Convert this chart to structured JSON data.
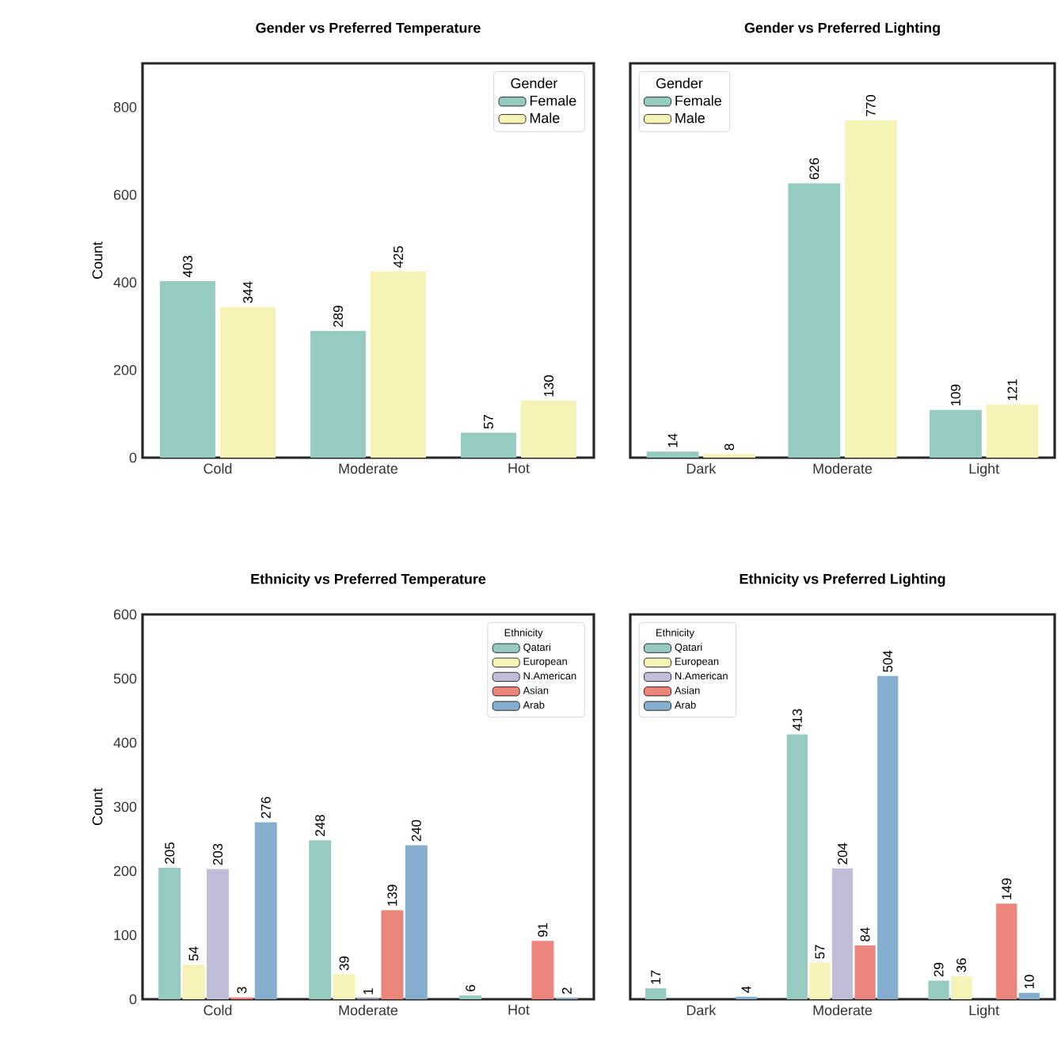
{
  "chart_data": [
    {
      "type": "bar",
      "title": "Gender vs Preferred Temperature",
      "ylabel": "Count",
      "categories": [
        "Cold",
        "Moderate",
        "Hot"
      ],
      "legend_title": "Gender",
      "legend": "top right",
      "data_labels": true,
      "ylim": [
        0,
        900
      ],
      "yticks": [
        0,
        200,
        400,
        600,
        800
      ],
      "series": [
        {
          "name": "Female",
          "color": "#96cbc1",
          "values": [
            403,
            289,
            57
          ]
        },
        {
          "name": "Male",
          "color": "#f5f3b5",
          "values": [
            344,
            425,
            130
          ]
        }
      ]
    },
    {
      "type": "bar",
      "title": "Gender vs Preferred Lighting",
      "categories": [
        "Dark",
        "Moderate",
        "Light"
      ],
      "legend_title": "Gender",
      "legend": "top left",
      "data_labels": true,
      "ylim": [
        0,
        900
      ],
      "yticks": [
        0,
        200,
        400,
        600,
        800
      ],
      "tick_labels": "x",
      "series": [
        {
          "name": "Female",
          "color": "#96cbc1",
          "values": [
            14,
            626,
            109
          ]
        },
        {
          "name": "Male",
          "color": "#f5f3b5",
          "values": [
            8,
            770,
            121
          ]
        }
      ]
    },
    {
      "type": "bar",
      "title": "Ethnicity vs Preferred Temperature",
      "ylabel": "Count",
      "categories": [
        "Cold",
        "Moderate",
        "Hot"
      ],
      "legend_title": "Ethnicity",
      "legend": "top right",
      "data_labels": true,
      "ylim": [
        0,
        600
      ],
      "yticks": [
        0,
        100,
        200,
        300,
        400,
        500,
        600
      ],
      "series": [
        {
          "name": "Qatari",
          "color": "#96cbc1",
          "values": [
            205,
            248,
            6
          ]
        },
        {
          "name": "European",
          "color": "#f5f3b5",
          "values": [
            54,
            39,
            null
          ]
        },
        {
          "name": "N.American",
          "color": "#c1bdd8",
          "values": [
            203,
            1,
            null
          ]
        },
        {
          "name": "Asian",
          "color": "#ec867c",
          "values": [
            3,
            139,
            91
          ]
        },
        {
          "name": "Arab",
          "color": "#86afcf",
          "values": [
            276,
            240,
            2
          ]
        }
      ]
    },
    {
      "type": "bar",
      "title": "Ethnicity vs Preferred Lighting",
      "categories": [
        "Dark",
        "Moderate",
        "Light"
      ],
      "legend_title": "Ethnicity",
      "legend": "top left",
      "data_labels": true,
      "ylim": [
        0,
        600
      ],
      "yticks": [
        0,
        100,
        200,
        300,
        400,
        500,
        600
      ],
      "tick_labels": "x",
      "series": [
        {
          "name": "Qatari",
          "color": "#96cbc1",
          "values": [
            17,
            413,
            29
          ]
        },
        {
          "name": "European",
          "color": "#f5f3b5",
          "values": [
            null,
            57,
            36
          ]
        },
        {
          "name": "N.American",
          "color": "#c1bdd8",
          "values": [
            null,
            204,
            null
          ]
        },
        {
          "name": "Asian",
          "color": "#ec867c",
          "values": [
            null,
            84,
            149
          ]
        },
        {
          "name": "Arab",
          "color": "#86afcf",
          "values": [
            4,
            504,
            10
          ]
        }
      ]
    }
  ]
}
